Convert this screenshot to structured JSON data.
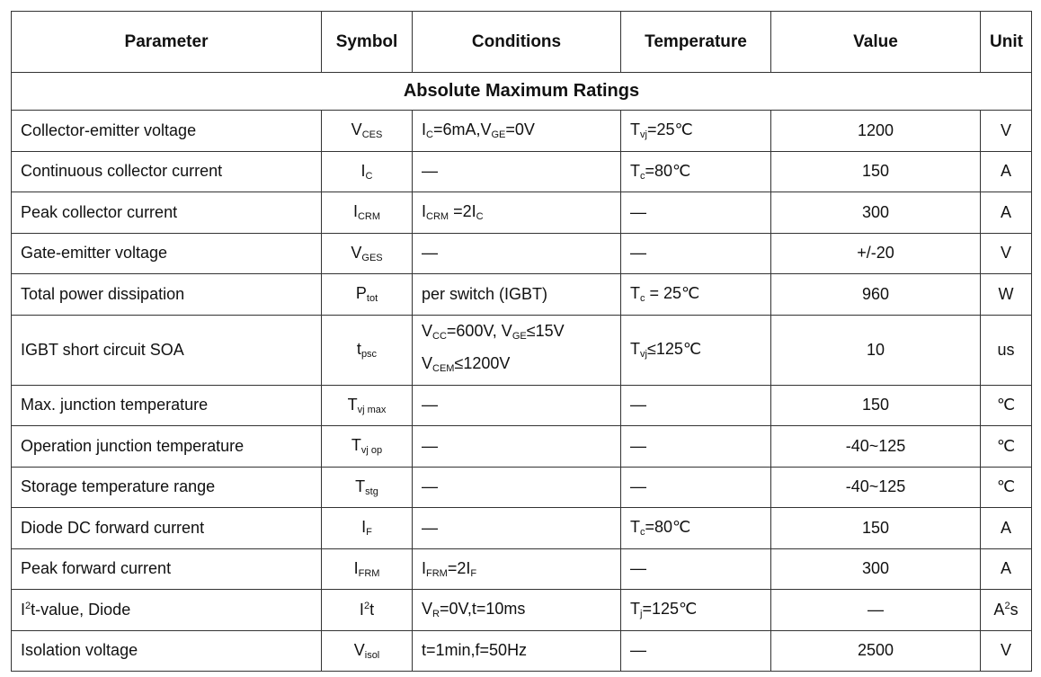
{
  "table": {
    "header": [
      "Parameter",
      "Symbol",
      "Conditions",
      "Temperature",
      "Value",
      "Unit"
    ],
    "section": "Absolute Maximum Ratings",
    "rows": [
      {
        "parameter": [
          "Collector-emitter voltage"
        ],
        "symbol": [
          "V",
          {
            "sub": "CES"
          }
        ],
        "conditions": [
          "I",
          {
            "sub": "C"
          },
          "=6mA,V",
          {
            "sub": "GE"
          },
          "=0V"
        ],
        "temperature": [
          "T",
          {
            "sub": "vj"
          },
          "=25℃"
        ],
        "value": [
          "1200"
        ],
        "unit": [
          "V"
        ]
      },
      {
        "parameter": [
          "Continuous collector current"
        ],
        "symbol": [
          "I",
          {
            "sub": "C"
          }
        ],
        "conditions": [
          "—"
        ],
        "temperature": [
          "T",
          {
            "sub": "c"
          },
          "=80℃"
        ],
        "value": [
          "150"
        ],
        "unit": [
          "A"
        ]
      },
      {
        "parameter": [
          "Peak collector current"
        ],
        "symbol": [
          "I",
          {
            "sub": "CRM"
          }
        ],
        "conditions": [
          "I",
          {
            "sub": "CRM"
          },
          " =2I",
          {
            "sub": "C"
          }
        ],
        "temperature": [
          "—"
        ],
        "value": [
          "300"
        ],
        "unit": [
          "A"
        ]
      },
      {
        "parameter": [
          "Gate-emitter voltage"
        ],
        "symbol": [
          "V",
          {
            "sub": "GES"
          }
        ],
        "conditions": [
          "—"
        ],
        "temperature": [
          "—"
        ],
        "value": [
          "+/-20"
        ],
        "unit": [
          "V"
        ]
      },
      {
        "parameter": [
          "Total power dissipation"
        ],
        "symbol": [
          "P",
          {
            "sub": "tot"
          }
        ],
        "conditions": [
          "per switch (IGBT)"
        ],
        "temperature": [
          "T",
          {
            "sub": "c"
          },
          " = 25℃"
        ],
        "value": [
          "960"
        ],
        "unit": [
          "W"
        ]
      },
      {
        "parameter": [
          "IGBT short circuit SOA"
        ],
        "symbol": [
          "t",
          {
            "sub": "psc"
          }
        ],
        "conditions": [
          [
            "V",
            {
              "sub": "CC"
            },
            "=600V, V",
            {
              "sub": "GE"
            },
            "≤15V"
          ],
          [
            "V",
            {
              "sub": "CEM"
            },
            "≤1200V"
          ]
        ],
        "temperature": [
          "T",
          {
            "sub": "vj"
          },
          "≤125℃"
        ],
        "value": [
          "10"
        ],
        "unit": [
          "us"
        ]
      },
      {
        "parameter": [
          "Max. junction temperature"
        ],
        "symbol": [
          "T",
          {
            "sub": "vj max"
          }
        ],
        "conditions": [
          "—"
        ],
        "temperature": [
          "—"
        ],
        "value": [
          "150"
        ],
        "unit": [
          "℃"
        ]
      },
      {
        "parameter": [
          "Operation junction temperature"
        ],
        "symbol": [
          "T",
          {
            "sub": "vj op"
          }
        ],
        "conditions": [
          "—"
        ],
        "temperature": [
          "—"
        ],
        "value": [
          "-40~125"
        ],
        "unit": [
          "℃"
        ]
      },
      {
        "parameter": [
          "Storage temperature range"
        ],
        "symbol": [
          "T",
          {
            "sub": "stg"
          }
        ],
        "conditions": [
          "—"
        ],
        "temperature": [
          "—"
        ],
        "value": [
          "-40~125"
        ],
        "unit": [
          "℃"
        ]
      },
      {
        "parameter": [
          "Diode DC forward current"
        ],
        "symbol": [
          "I",
          {
            "sub": "F"
          }
        ],
        "conditions": [
          "—"
        ],
        "temperature": [
          "T",
          {
            "sub": "c"
          },
          "=80℃"
        ],
        "value": [
          "150"
        ],
        "unit": [
          "A"
        ]
      },
      {
        "parameter": [
          "Peak forward current"
        ],
        "symbol": [
          "I",
          {
            "sub": "FRM"
          }
        ],
        "conditions": [
          "I",
          {
            "sub": "FRM"
          },
          "=2I",
          {
            "sub": "F"
          }
        ],
        "temperature": [
          "—"
        ],
        "value": [
          "300"
        ],
        "unit": [
          "A"
        ]
      },
      {
        "parameter": [
          "I",
          {
            "sup": "2"
          },
          "t-value, Diode"
        ],
        "symbol": [
          "I",
          {
            "sup": "2"
          },
          "t"
        ],
        "conditions": [
          "V",
          {
            "sub": "R"
          },
          "=0V,t=10ms"
        ],
        "temperature": [
          "T",
          {
            "sub": "j"
          },
          "=125℃"
        ],
        "value": [
          "—"
        ],
        "unit": [
          "A",
          {
            "sup": "2"
          },
          "s"
        ]
      },
      {
        "parameter": [
          "Isolation voltage"
        ],
        "symbol": [
          "V",
          {
            "sub": "isol"
          }
        ],
        "conditions": [
          "t=1min,f=50Hz"
        ],
        "temperature": [
          "—"
        ],
        "value": [
          "2500"
        ],
        "unit": [
          "V"
        ]
      }
    ]
  }
}
